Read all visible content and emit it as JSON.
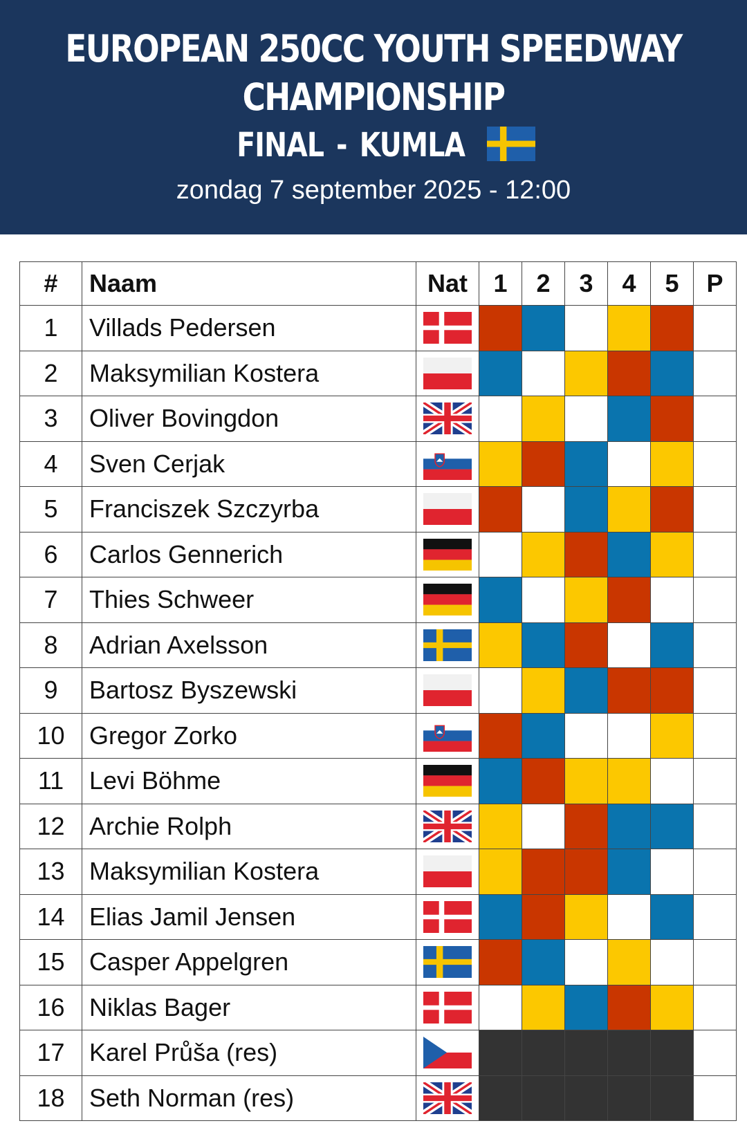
{
  "header": {
    "title_line1": "EUROPEAN 250CC YOUTH SPEEDWAY",
    "title_line2": "CHAMPIONSHIP",
    "final_label": "FINAL",
    "separator": "-",
    "location": "KUMLA",
    "location_flag": "SE",
    "date": "zondag 7 september 2025 - 12:00"
  },
  "colors": {
    "header_bg": "#1b365d",
    "red": "#c93600",
    "blue": "#0a74ae",
    "yellow": "#fcc800",
    "white": "#ffffff",
    "dark": "#333333"
  },
  "table": {
    "headers": [
      "#",
      "Naam",
      "Nat",
      "1",
      "2",
      "3",
      "4",
      "5",
      "P"
    ],
    "rows": [
      {
        "num": "1",
        "name": "Villads Pedersen",
        "nat": "DK",
        "heats": [
          "R",
          "B",
          "W",
          "Y",
          "R"
        ],
        "p": ""
      },
      {
        "num": "2",
        "name": "Maksymilian Kostera",
        "nat": "PL",
        "heats": [
          "B",
          "W",
          "Y",
          "R",
          "B"
        ],
        "p": ""
      },
      {
        "num": "3",
        "name": "Oliver Bovingdon",
        "nat": "GB",
        "heats": [
          "W",
          "Y",
          "W",
          "B",
          "R"
        ],
        "p": ""
      },
      {
        "num": "4",
        "name": "Sven Cerjak",
        "nat": "SI",
        "heats": [
          "Y",
          "R",
          "B",
          "W",
          "Y"
        ],
        "p": ""
      },
      {
        "num": "5",
        "name": "Franciszek Szczyrba",
        "nat": "PL",
        "heats": [
          "R",
          "W",
          "B",
          "Y",
          "R"
        ],
        "p": ""
      },
      {
        "num": "6",
        "name": "Carlos Gennerich",
        "nat": "DE",
        "heats": [
          "W",
          "Y",
          "R",
          "B",
          "Y"
        ],
        "p": ""
      },
      {
        "num": "7",
        "name": "Thies Schweer",
        "nat": "DE",
        "heats": [
          "B",
          "W",
          "Y",
          "R",
          "W"
        ],
        "p": ""
      },
      {
        "num": "8",
        "name": "Adrian Axelsson",
        "nat": "SE",
        "heats": [
          "Y",
          "B",
          "R",
          "W",
          "B"
        ],
        "p": ""
      },
      {
        "num": "9",
        "name": "Bartosz Byszewski",
        "nat": "PL",
        "heats": [
          "W",
          "Y",
          "B",
          "R",
          "R"
        ],
        "p": ""
      },
      {
        "num": "10",
        "name": "Gregor Zorko",
        "nat": "SI",
        "heats": [
          "R",
          "B",
          "W",
          "W",
          "Y"
        ],
        "p": ""
      },
      {
        "num": "11",
        "name": "Levi Böhme",
        "nat": "DE",
        "heats": [
          "B",
          "R",
          "Y",
          "Y",
          "W"
        ],
        "p": ""
      },
      {
        "num": "12",
        "name": "Archie Rolph",
        "nat": "GB",
        "heats": [
          "Y",
          "W",
          "R",
          "B",
          "B"
        ],
        "p": ""
      },
      {
        "num": "13",
        "name": "Maksymilian Kostera",
        "nat": "PL",
        "heats": [
          "Y",
          "R",
          "R",
          "B",
          "W"
        ],
        "p": ""
      },
      {
        "num": "14",
        "name": "Elias Jamil Jensen",
        "nat": "DK",
        "heats": [
          "B",
          "R",
          "Y",
          "W",
          "B"
        ],
        "p": ""
      },
      {
        "num": "15",
        "name": "Casper Appelgren",
        "nat": "SE",
        "heats": [
          "R",
          "B",
          "W",
          "Y",
          "W"
        ],
        "p": ""
      },
      {
        "num": "16",
        "name": "Niklas Bager",
        "nat": "DK",
        "heats": [
          "W",
          "Y",
          "B",
          "R",
          "Y"
        ],
        "p": ""
      },
      {
        "num": "17",
        "name": "Karel Průša (res)",
        "nat": "CZ",
        "heats": [
          "D",
          "D",
          "D",
          "D",
          "D"
        ],
        "p": ""
      },
      {
        "num": "18",
        "name": "Seth Norman (res)",
        "nat": "GB",
        "heats": [
          "D",
          "D",
          "D",
          "D",
          "D"
        ],
        "p": ""
      }
    ]
  }
}
